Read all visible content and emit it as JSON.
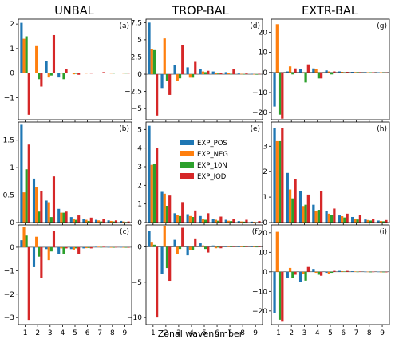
{
  "chart_data": {
    "type": "bar",
    "column_titles": [
      "UNBAL",
      "TROP-BAL",
      "EXTR-BAL"
    ],
    "xlabel": "Zonal wavenumber",
    "categories": [
      1,
      2,
      3,
      4,
      5,
      6,
      7,
      8,
      9
    ],
    "legend": {
      "placement": "center panel (e)",
      "entries": [
        "EXP_POS",
        "EXP_NEG",
        "EXP_10N",
        "EXP_IOD"
      ]
    },
    "series_colors": [
      "#1f77b4",
      "#ff7f0e",
      "#2ca02c",
      "#d62728"
    ],
    "panels": [
      {
        "label": "(a)",
        "row": 0,
        "col": 0,
        "ylim": [
          -1.9,
          2.2
        ],
        "yticks": [
          -1,
          0,
          1,
          2
        ],
        "series": [
          {
            "name": "EXP_POS",
            "values": [
              2.05,
              0.02,
              0.5,
              -0.18,
              0.02,
              0.02,
              0.02,
              0.02,
              0.01
            ]
          },
          {
            "name": "EXP_NEG",
            "values": [
              1.4,
              1.1,
              -0.18,
              -0.02,
              -0.05,
              -0.02,
              0.02,
              0.0,
              0.0
            ]
          },
          {
            "name": "EXP_10N",
            "values": [
              1.5,
              -0.25,
              -0.1,
              -0.25,
              -0.03,
              0.02,
              0.01,
              0.0,
              0.0
            ]
          },
          {
            "name": "EXP_IOD",
            "values": [
              -1.7,
              -0.55,
              1.55,
              0.15,
              -0.07,
              -0.02,
              0.04,
              0.02,
              0.0
            ]
          }
        ]
      },
      {
        "label": "(b)",
        "row": 1,
        "col": 0,
        "ylim": [
          0,
          1.83
        ],
        "yticks": [
          0.0,
          0.5,
          1.0,
          1.5
        ],
        "series": [
          {
            "name": "EXP_POS",
            "values": [
              1.78,
              0.8,
              0.4,
              0.25,
              0.1,
              0.07,
              0.05,
              0.04,
              0.03
            ]
          },
          {
            "name": "EXP_NEG",
            "values": [
              0.55,
              0.65,
              0.37,
              0.18,
              0.07,
              0.05,
              0.04,
              0.03,
              0.02
            ]
          },
          {
            "name": "EXP_10N",
            "values": [
              0.97,
              0.2,
              0.1,
              0.18,
              0.05,
              0.03,
              0.02,
              0.02,
              0.01
            ]
          },
          {
            "name": "EXP_IOD",
            "values": [
              1.42,
              0.58,
              0.84,
              0.2,
              0.13,
              0.09,
              0.07,
              0.04,
              0.02
            ]
          }
        ]
      },
      {
        "label": "(c)",
        "row": 2,
        "col": 0,
        "ylim": [
          -3.3,
          0.95
        ],
        "yticks": [
          -3,
          -2,
          -1,
          0
        ],
        "series": [
          {
            "name": "EXP_POS",
            "values": [
              0.3,
              -0.85,
              -0.08,
              -0.3,
              -0.08,
              -0.05,
              0.02,
              0.01,
              0.01
            ]
          },
          {
            "name": "EXP_NEG",
            "values": [
              0.85,
              0.45,
              -0.55,
              -0.05,
              -0.1,
              -0.04,
              0.02,
              0.0,
              0.0
            ]
          },
          {
            "name": "EXP_10N",
            "values": [
              0.5,
              -0.4,
              -0.18,
              -0.3,
              -0.05,
              -0.03,
              0.01,
              0.0,
              0.0
            ]
          },
          {
            "name": "EXP_IOD",
            "values": [
              -3.1,
              -1.3,
              0.7,
              -0.05,
              -0.3,
              -0.05,
              0.02,
              0.01,
              0.0
            ]
          }
        ]
      },
      {
        "label": "(d)",
        "row": 0,
        "col": 1,
        "ylim": [
          -6.6,
          8.0
        ],
        "yticks": [
          -5.0,
          -2.5,
          0.0,
          2.5,
          5.0,
          7.5
        ],
        "series": [
          {
            "name": "EXP_POS",
            "values": [
              7.5,
              -2.0,
              1.3,
              1.0,
              0.8,
              0.4,
              0.3,
              0.1,
              0.05
            ]
          },
          {
            "name": "EXP_NEG",
            "values": [
              3.7,
              5.2,
              -1.0,
              -0.5,
              0.4,
              0.2,
              0.2,
              0.05,
              0.02
            ]
          },
          {
            "name": "EXP_10N",
            "values": [
              3.5,
              -1.0,
              -0.6,
              -0.5,
              0.3,
              0.1,
              0.05,
              0.02,
              0.0
            ]
          },
          {
            "name": "EXP_IOD",
            "values": [
              -6.0,
              -3.0,
              4.2,
              1.8,
              0.5,
              0.2,
              0.7,
              0.1,
              0.05
            ]
          }
        ]
      },
      {
        "label": "(e)",
        "row": 1,
        "col": 1,
        "ylim": [
          0,
          5.4
        ],
        "yticks": [
          0,
          1,
          2,
          3,
          4,
          5
        ],
        "series": [
          {
            "name": "EXP_POS",
            "values": [
              5.2,
              1.65,
              0.5,
              0.45,
              0.35,
              0.2,
              0.15,
              0.08,
              0.05
            ]
          },
          {
            "name": "EXP_NEG",
            "values": [
              3.1,
              1.55,
              0.4,
              0.35,
              0.2,
              0.15,
              0.1,
              0.06,
              0.04
            ]
          },
          {
            "name": "EXP_10N",
            "values": [
              3.15,
              0.9,
              0.35,
              0.3,
              0.15,
              0.1,
              0.08,
              0.05,
              0.02
            ]
          },
          {
            "name": "EXP_IOD",
            "values": [
              4.0,
              1.45,
              1.1,
              0.65,
              0.5,
              0.32,
              0.2,
              0.15,
              0.08
            ]
          }
        ]
      },
      {
        "label": "(f)",
        "row": 2,
        "col": 1,
        "ylim": [
          -11,
          3.1
        ],
        "yticks": [
          -10,
          -5,
          0
        ],
        "series": [
          {
            "name": "EXP_POS",
            "values": [
              2.3,
              -3.8,
              1.0,
              -1.2,
              0.5,
              0.2,
              0.1,
              0.05,
              0.02
            ]
          },
          {
            "name": "EXP_NEG",
            "values": [
              0.6,
              3.0,
              -1.0,
              -0.5,
              0.2,
              -0.2,
              0.1,
              0.05,
              0.02
            ]
          },
          {
            "name": "EXP_10N",
            "values": [
              0.3,
              -3.0,
              -0.3,
              -0.5,
              -0.3,
              -0.1,
              0.05,
              0.02,
              0.0
            ]
          },
          {
            "name": "EXP_IOD",
            "values": [
              -10.0,
              -4.8,
              2.7,
              1.2,
              -0.8,
              -0.2,
              0.1,
              0.05,
              0.02
            ]
          }
        ]
      },
      {
        "label": "(g)",
        "row": 0,
        "col": 2,
        "ylim": [
          -23.5,
          26.5
        ],
        "yticks": [
          -20,
          -10,
          0,
          10,
          20
        ],
        "series": [
          {
            "name": "EXP_POS",
            "values": [
              -17.0,
              0.5,
              1.5,
              2.0,
              1.0,
              0.5,
              0.3,
              0.2,
              0.1
            ]
          },
          {
            "name": "EXP_NEG",
            "values": [
              24.0,
              3.0,
              -0.5,
              1.5,
              0.5,
              0.3,
              0.2,
              0.1,
              0.1
            ]
          },
          {
            "name": "EXP_10N",
            "values": [
              -21.0,
              -1.0,
              -5.0,
              -3.0,
              -1.0,
              -0.5,
              0.2,
              0.1,
              0.0
            ]
          },
          {
            "name": "EXP_IOD",
            "values": [
              -23.0,
              2.0,
              4.0,
              -3.0,
              0.5,
              0.3,
              0.2,
              0.1,
              0.0
            ]
          }
        ]
      },
      {
        "label": "(h)",
        "row": 1,
        "col": 2,
        "ylim": [
          0,
          3.95
        ],
        "yticks": [
          0,
          1,
          2,
          3
        ],
        "series": [
          {
            "name": "EXP_POS",
            "values": [
              3.7,
              1.95,
              1.25,
              0.7,
              0.45,
              0.28,
              0.22,
              0.12,
              0.08
            ]
          },
          {
            "name": "EXP_NEG",
            "values": [
              3.2,
              1.3,
              0.65,
              0.45,
              0.35,
              0.25,
              0.15,
              0.1,
              0.06
            ]
          },
          {
            "name": "EXP_10N",
            "values": [
              3.2,
              0.95,
              0.7,
              0.5,
              0.3,
              0.2,
              0.12,
              0.08,
              0.05
            ]
          },
          {
            "name": "EXP_IOD",
            "values": [
              3.7,
              1.7,
              1.1,
              1.25,
              0.55,
              0.35,
              0.3,
              0.15,
              0.1
            ]
          }
        ]
      },
      {
        "label": "(i)",
        "row": 2,
        "col": 2,
        "ylim": [
          -27,
          24
        ],
        "yticks": [
          -20,
          -10,
          0,
          10,
          20
        ],
        "series": [
          {
            "name": "EXP_POS",
            "values": [
              -21.0,
              -3.0,
              -5.0,
              1.5,
              -0.5,
              0.5,
              0.3,
              0.1,
              0.1
            ]
          },
          {
            "name": "EXP_NEG",
            "values": [
              20.5,
              2.0,
              -1.0,
              -0.5,
              -1.0,
              0.3,
              0.2,
              0.1,
              0.0
            ]
          },
          {
            "name": "EXP_10N",
            "values": [
              -24.5,
              -3.0,
              -4.5,
              -1.5,
              -0.5,
              0.2,
              0.1,
              0.0,
              0.0
            ]
          },
          {
            "name": "EXP_IOD",
            "values": [
              -25.5,
              -1.5,
              2.5,
              -2.0,
              0.5,
              0.5,
              0.2,
              0.1,
              0.0
            ]
          }
        ]
      }
    ]
  }
}
